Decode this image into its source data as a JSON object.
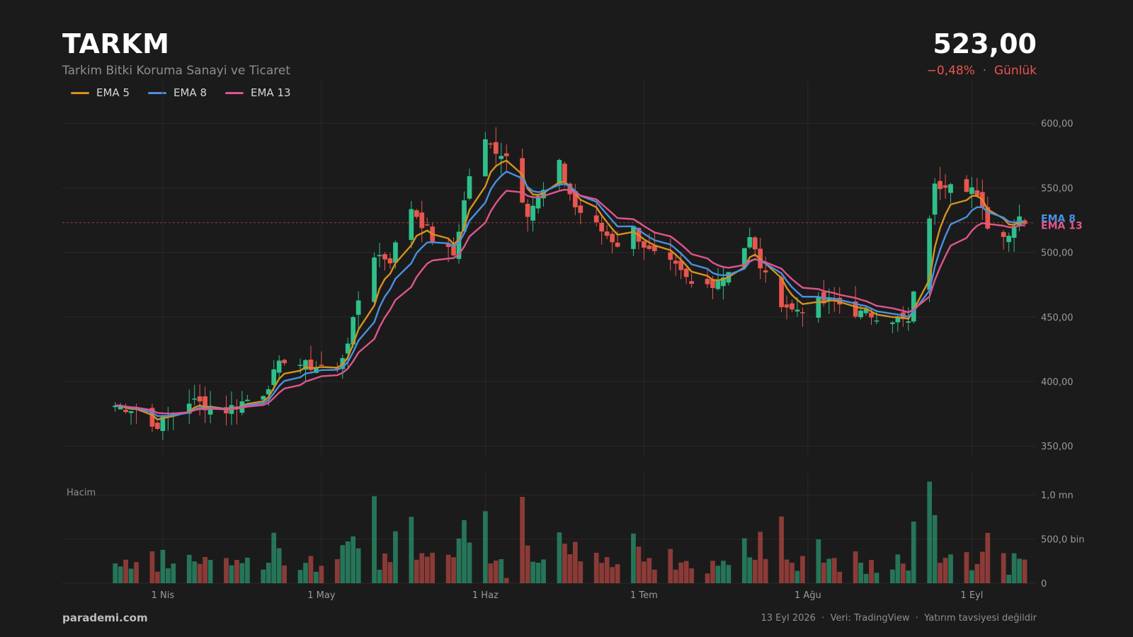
{
  "header": {
    "ticker": "TARKM",
    "company": "Tarkim Bitki Koruma Sanayi ve Ticaret",
    "price": "523,00",
    "change": "−0,48%  ·  Günlük"
  },
  "footer": {
    "brand": "parademi.com",
    "info": "13 Eyl 2026  ·  Veri: TradingView  ·  Yatırım tavsiyesi değildir"
  },
  "colors": {
    "up": "#2fbf8a",
    "down": "#e8564f",
    "ema5": "#d4921e",
    "ema8": "#4a90e2",
    "ema13": "#e0558e",
    "grid": "#2a2a2a",
    "price_line": "#e8564f"
  },
  "chart_data": {
    "type": "candlestick",
    "price_axis": {
      "ylim": [
        343,
        633
      ],
      "ticks": [
        350,
        400,
        450,
        500,
        550,
        600
      ],
      "tick_labels": [
        "350,00",
        "400,00",
        "450,00",
        "500,00",
        "550,00",
        "600,00"
      ]
    },
    "volume_axis": {
      "label": "Hacim",
      "ylim": [
        0,
        1250000
      ],
      "ticks": [
        0,
        500000,
        1000000
      ],
      "tick_labels": [
        "0",
        "500,0 bin",
        "1,0 mn"
      ]
    },
    "x_axis": {
      "first_date": "2026-03-13",
      "last_date": "2026-09-13",
      "tick_labels": [
        "1 Nis",
        "1 May",
        "1 Haz",
        "1 Tem",
        "1 Ağu",
        "1 Eyl"
      ],
      "tick_dates": [
        "2026-04-01",
        "2026-05-01",
        "2026-06-01",
        "2026-07-01",
        "2026-08-01",
        "2026-09-01"
      ]
    },
    "current_price": 523,
    "legend": [
      "EMA 5",
      "EMA 8",
      "EMA 13"
    ],
    "ema_tags": [
      "EMA 8",
      "EMA 13"
    ],
    "key_closes": [
      [
        "2026-03-22",
        382
      ],
      [
        "2026-03-27",
        379
      ],
      [
        "2026-03-30",
        365
      ],
      [
        "2026-04-01",
        370
      ],
      [
        "2026-04-06",
        385
      ],
      [
        "2026-04-13",
        378
      ],
      [
        "2026-04-20",
        392
      ],
      [
        "2026-04-24",
        418
      ],
      [
        "2026-04-28",
        412
      ],
      [
        "2026-05-01",
        412
      ],
      [
        "2026-05-04",
        408
      ],
      [
        "2026-05-07",
        445
      ],
      [
        "2026-05-10",
        500
      ],
      [
        "2026-05-14",
        495
      ],
      [
        "2026-05-18",
        535
      ],
      [
        "2026-05-23",
        505
      ],
      [
        "2026-05-26",
        498
      ],
      [
        "2026-05-29",
        560
      ],
      [
        "2026-06-01",
        585
      ],
      [
        "2026-06-05",
        575
      ],
      [
        "2026-06-09",
        532
      ],
      [
        "2026-06-12",
        547
      ],
      [
        "2026-06-15",
        567
      ],
      [
        "2026-06-18",
        535
      ],
      [
        "2026-06-22",
        520
      ],
      [
        "2026-06-26",
        507
      ],
      [
        "2026-06-29",
        518
      ],
      [
        "2026-07-02",
        500
      ],
      [
        "2026-07-07",
        487
      ],
      [
        "2026-07-11",
        470
      ],
      [
        "2026-07-16",
        482
      ],
      [
        "2026-07-21",
        510
      ],
      [
        "2026-07-25",
        470
      ],
      [
        "2026-07-29",
        455
      ],
      [
        "2026-08-02",
        460
      ],
      [
        "2026-08-06",
        462
      ],
      [
        "2026-08-11",
        452
      ],
      [
        "2026-08-15",
        452
      ],
      [
        "2026-08-20",
        445
      ],
      [
        "2026-08-25",
        550
      ],
      [
        "2026-08-28",
        557
      ],
      [
        "2026-09-01",
        550
      ],
      [
        "2026-09-04",
        522
      ],
      [
        "2026-09-07",
        512
      ],
      [
        "2026-09-10",
        528
      ],
      [
        "2026-09-13",
        523
      ]
    ]
  }
}
